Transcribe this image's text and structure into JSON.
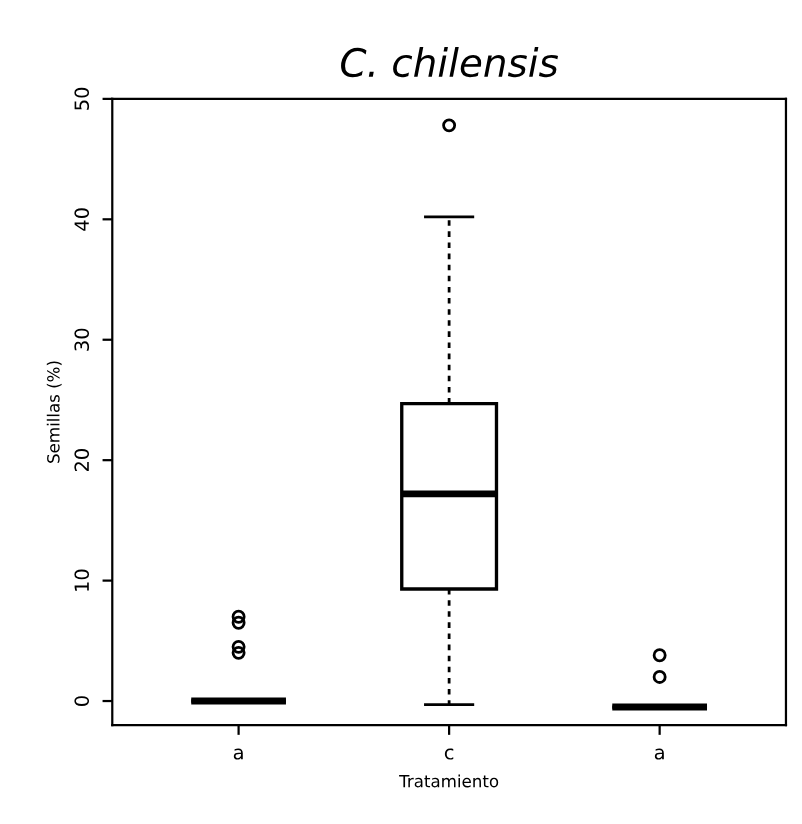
{
  "chart_data": {
    "type": "box",
    "title": "C. chilensis",
    "xlabel": "Tratamiento",
    "ylabel": "Semillas (%)",
    "categories": [
      "a",
      "c",
      "a"
    ],
    "boxes": [
      {
        "low": 0,
        "q1": 0,
        "median": 0,
        "q3": 0,
        "high": 0,
        "outliers": [
          4,
          4.5,
          6.5,
          7
        ]
      },
      {
        "low": -0.3,
        "q1": 9.3,
        "median": 17.2,
        "q3": 24.7,
        "high": 40.2,
        "outliers": [
          47.8
        ]
      },
      {
        "low": -0.5,
        "q1": -0.5,
        "median": -0.5,
        "q3": -0.5,
        "high": -0.5,
        "outliers": [
          2,
          3.8
        ]
      }
    ],
    "ylim": [
      -2,
      50
    ],
    "yticks": [
      0,
      10,
      20,
      30,
      40,
      50
    ],
    "grid": false
  }
}
